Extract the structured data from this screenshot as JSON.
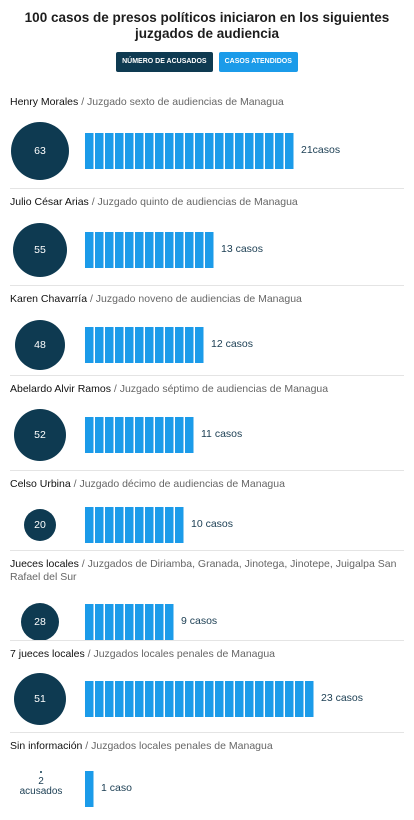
{
  "title": "100 casos de presos políticos iniciaron en los siguientes juzgados de audiencia",
  "legend": {
    "accused_label": "NÚMERO DE ACUSADOS",
    "cases_label": "CASOS ATENDIDOS"
  },
  "colors": {
    "accused": "#0e3a51",
    "cases": "#1b9be9",
    "divider": "#e4e4e4"
  },
  "chart_data": {
    "type": "bar",
    "title": "100 casos de presos políticos iniciaron en los siguientes juzgados de audiencia",
    "series": [
      {
        "name": "NÚMERO DE ACUSADOS",
        "values": [
          63,
          55,
          48,
          52,
          20,
          28,
          51,
          2
        ]
      },
      {
        "name": "CASOS ATENDIDOS",
        "values": [
          21,
          13,
          12,
          11,
          10,
          9,
          23,
          1
        ]
      }
    ],
    "rows": [
      {
        "name": "Henry Morales",
        "court": " / Juzgado sexto de audiencias de Managua",
        "accused": 63,
        "accused_label": "63",
        "cases": 21,
        "cases_label": "21casos"
      },
      {
        "name": "Julio César Arias",
        "court": " / Juzgado quinto de audiencias de Managua",
        "accused": 55,
        "accused_label": "55",
        "cases": 13,
        "cases_label": "13 casos"
      },
      {
        "name": "Karen Chavarría",
        "court": " / Juzgado noveno de audiencias de Managua",
        "accused": 48,
        "accused_label": "48",
        "cases": 12,
        "cases_label": "12 casos"
      },
      {
        "name": "Abelardo Alvir Ramos",
        "court": " / Juzgado séptimo de audiencias de Managua",
        "accused": 52,
        "accused_label": "52",
        "cases": 11,
        "cases_label": "11 casos"
      },
      {
        "name": "Celso Urbina",
        "court": " / Juzgado décimo de audiencias de Managua",
        "accused": 20,
        "accused_label": "20",
        "cases": 10,
        "cases_label": "10 casos"
      },
      {
        "name": "Jueces locales",
        "court": " / Juzgados de Diriamba, Granada, Jinotega, Jinotepe, Juigalpa San Rafael del Sur",
        "accused": 28,
        "accused_label": "28",
        "cases": 9,
        "cases_label": "9 casos"
      },
      {
        "name": "7 jueces locales",
        "court": " / Juzgados locales penales de Managua",
        "accused": 51,
        "accused_label": "51",
        "cases": 23,
        "cases_label": "23 casos"
      },
      {
        "name": "Sin información",
        "court": " / Juzgados locales penales de Managua",
        "accused": 2,
        "accused_label": "2",
        "accused_unit": "acusados",
        "cases": 1,
        "cases_label": "1 caso"
      }
    ]
  }
}
